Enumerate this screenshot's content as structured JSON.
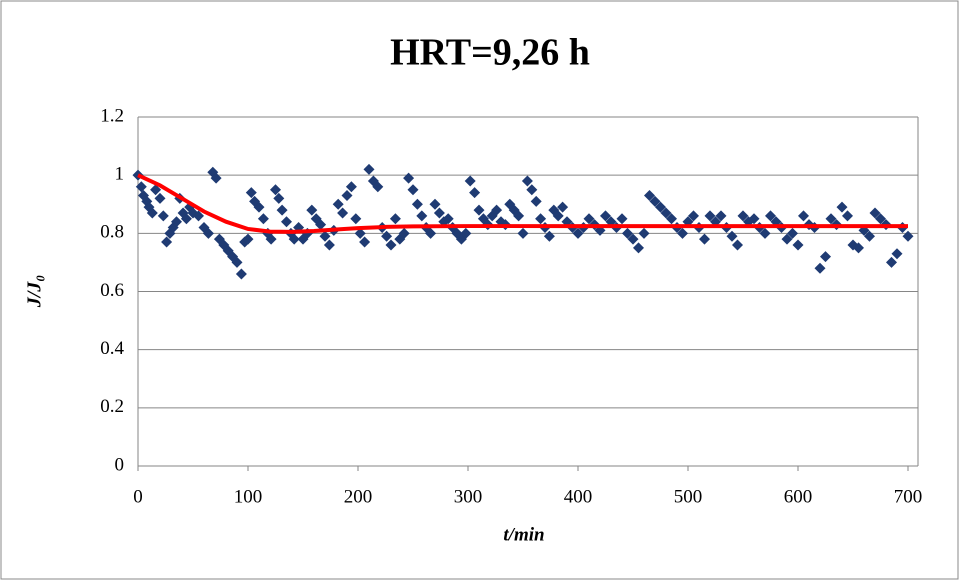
{
  "chart_data": {
    "type": "scatter",
    "title": "HRT=9,26 h",
    "x_label": "t/min",
    "y_label": "J/J₀",
    "xlim": [
      0,
      700
    ],
    "xticks": [
      0,
      100,
      200,
      300,
      400,
      500,
      600,
      700
    ],
    "ylim": [
      0,
      1.2
    ],
    "yticks": [
      0,
      0.2,
      0.4,
      0.6,
      0.8,
      1,
      1.2
    ],
    "grid": true,
    "series": [
      {
        "style": "marker",
        "color": "#1f3b73",
        "x": [
          0,
          3,
          5,
          8,
          10,
          13,
          16,
          20,
          23,
          26,
          29,
          32,
          35,
          38,
          41,
          44,
          47,
          50,
          55,
          60,
          64,
          68,
          71,
          74,
          78,
          82,
          86,
          90,
          94,
          97,
          100,
          103,
          106,
          110,
          114,
          118,
          121,
          125,
          128,
          131,
          135,
          139,
          142,
          146,
          150,
          154,
          158,
          162,
          166,
          170,
          174,
          178,
          182,
          186,
          190,
          194,
          198,
          202,
          206,
          210,
          214,
          218,
          222,
          226,
          230,
          234,
          238,
          242,
          246,
          250,
          254,
          258,
          262,
          266,
          270,
          274,
          278,
          282,
          286,
          290,
          294,
          298,
          302,
          306,
          310,
          314,
          318,
          322,
          326,
          330,
          334,
          338,
          342,
          346,
          350,
          354,
          358,
          362,
          366,
          370,
          374,
          378,
          382,
          386,
          390,
          395,
          400,
          405,
          410,
          415,
          420,
          425,
          430,
          435,
          440,
          445,
          450,
          455,
          460,
          465,
          470,
          475,
          480,
          485,
          490,
          495,
          500,
          505,
          510,
          515,
          520,
          525,
          530,
          535,
          540,
          545,
          550,
          555,
          560,
          565,
          570,
          575,
          580,
          585,
          590,
          595,
          600,
          605,
          610,
          615,
          620,
          625,
          630,
          635,
          640,
          645,
          650,
          655,
          660,
          665,
          670,
          675,
          680,
          685,
          690,
          695,
          700
        ],
        "y": [
          1.0,
          0.96,
          0.93,
          0.91,
          0.89,
          0.87,
          0.95,
          0.92,
          0.86,
          0.77,
          0.8,
          0.82,
          0.84,
          0.92,
          0.87,
          0.85,
          0.89,
          0.87,
          0.86,
          0.82,
          0.8,
          1.01,
          0.99,
          0.78,
          0.76,
          0.74,
          0.72,
          0.7,
          0.66,
          0.77,
          0.78,
          0.94,
          0.91,
          0.89,
          0.85,
          0.8,
          0.78,
          0.95,
          0.92,
          0.88,
          0.84,
          0.8,
          0.78,
          0.82,
          0.78,
          0.8,
          0.88,
          0.85,
          0.83,
          0.79,
          0.76,
          0.81,
          0.9,
          0.87,
          0.93,
          0.96,
          0.85,
          0.8,
          0.77,
          1.02,
          0.98,
          0.96,
          0.82,
          0.79,
          0.76,
          0.85,
          0.78,
          0.8,
          0.99,
          0.95,
          0.9,
          0.86,
          0.82,
          0.8,
          0.9,
          0.87,
          0.84,
          0.85,
          0.82,
          0.8,
          0.78,
          0.8,
          0.98,
          0.94,
          0.88,
          0.85,
          0.83,
          0.86,
          0.88,
          0.84,
          0.83,
          0.9,
          0.88,
          0.86,
          0.8,
          0.98,
          0.95,
          0.91,
          0.85,
          0.82,
          0.79,
          0.88,
          0.86,
          0.89,
          0.84,
          0.82,
          0.8,
          0.82,
          0.85,
          0.83,
          0.81,
          0.86,
          0.84,
          0.82,
          0.85,
          0.8,
          0.78,
          0.75,
          0.8,
          0.93,
          0.91,
          0.89,
          0.87,
          0.85,
          0.82,
          0.8,
          0.84,
          0.86,
          0.82,
          0.78,
          0.86,
          0.84,
          0.86,
          0.82,
          0.79,
          0.76,
          0.86,
          0.84,
          0.85,
          0.82,
          0.8,
          0.86,
          0.84,
          0.82,
          0.78,
          0.8,
          0.76,
          0.86,
          0.83,
          0.82,
          0.68,
          0.72,
          0.85,
          0.83,
          0.89,
          0.86,
          0.76,
          0.75,
          0.81,
          0.79,
          0.87,
          0.85,
          0.83,
          0.7,
          0.73,
          0.82,
          0.79
        ]
      },
      {
        "style": "line",
        "color": "#ff0000",
        "x": [
          0,
          20,
          40,
          60,
          80,
          100,
          120,
          140,
          160,
          180,
          200,
          225,
          250,
          300,
          400,
          500,
          600,
          700
        ],
        "y": [
          1.0,
          0.965,
          0.92,
          0.875,
          0.84,
          0.815,
          0.806,
          0.805,
          0.808,
          0.813,
          0.818,
          0.822,
          0.824,
          0.825,
          0.825,
          0.825,
          0.825,
          0.825
        ]
      }
    ]
  }
}
